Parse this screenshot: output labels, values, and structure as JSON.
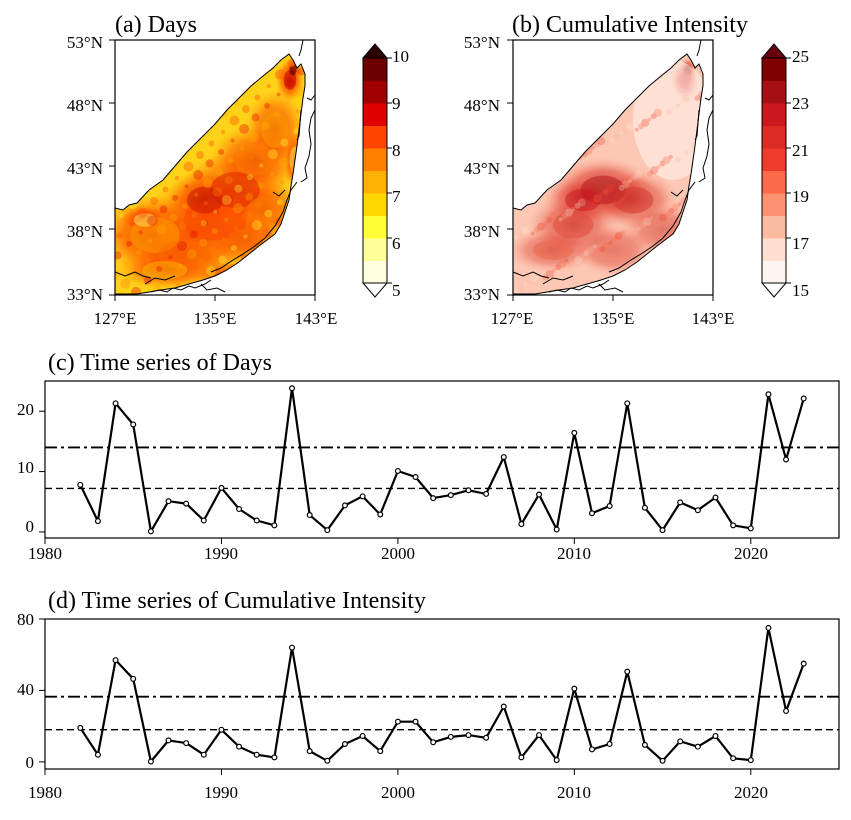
{
  "panel_a": {
    "title": "(a) Days",
    "lat_ticks": [
      "53°N",
      "48°N",
      "43°N",
      "38°N",
      "33°N"
    ],
    "lon_ticks": [
      "127°E",
      "135°E",
      "143°E"
    ],
    "colorbar": {
      "ticks": [
        "10",
        "9",
        "8",
        "7",
        "6",
        "5"
      ],
      "min": 5,
      "max": 10,
      "levels": 10,
      "colors": [
        "#ffffe0",
        "#ffff99",
        "#ffff33",
        "#ffd700",
        "#ffb000",
        "#ff8000",
        "#ff4500",
        "#e00000",
        "#a00000",
        "#6a0000"
      ],
      "over_color": "#2b0000",
      "under_color": "#ffffff"
    }
  },
  "panel_b": {
    "title": "(b) Cumulative Intensity",
    "lat_ticks": [
      "53°N",
      "48°N",
      "43°N",
      "38°N",
      "33°N"
    ],
    "lon_ticks": [
      "127°E",
      "135°E",
      "143°E"
    ],
    "colorbar": {
      "ticks": [
        "25",
        "23",
        "21",
        "19",
        "17",
        "15"
      ],
      "min": 15,
      "max": 25,
      "levels": 10,
      "colors": [
        "#fff5f0",
        "#fee0d2",
        "#fcbba1",
        "#fc9272",
        "#fb6a4a",
        "#ef3b2c",
        "#dc2a25",
        "#cb181d",
        "#a50f15",
        "#7f0000"
      ],
      "over_color": "#67000d",
      "under_color": "#ffffff"
    }
  },
  "chart_data": [
    {
      "type": "line",
      "title": "(c) Time series of Days",
      "x": [
        1982,
        1983,
        1984,
        1985,
        1986,
        1987,
        1988,
        1989,
        1990,
        1991,
        1992,
        1993,
        1994,
        1995,
        1996,
        1997,
        1998,
        1999,
        2000,
        2001,
        2002,
        2003,
        2004,
        2005,
        2006,
        2007,
        2008,
        2009,
        2010,
        2011,
        2012,
        2013,
        2014,
        2015,
        2016,
        2017,
        2018,
        2019,
        2020,
        2021,
        2022,
        2023
      ],
      "series": [
        {
          "values": [
            7.8,
            1.8,
            21.3,
            17.8,
            0.1,
            5.1,
            4.7,
            1.9,
            7.3,
            3.8,
            1.9,
            1.1,
            23.8,
            2.8,
            0.3,
            4.4,
            5.9,
            2.9,
            10.1,
            9.1,
            5.6,
            6.1,
            6.9,
            6.3,
            12.4,
            1.3,
            6.2,
            0.4,
            16.4,
            3.1,
            4.3,
            21.3,
            4.0,
            0.3,
            4.9,
            3.6,
            5.7,
            1.1,
            0.6,
            22.8,
            12.0,
            22.1
          ]
        }
      ],
      "reference_lines": [
        {
          "style": "dash-dot",
          "y": 14.0
        },
        {
          "style": "dashed",
          "y": 7.2
        }
      ],
      "xlim": [
        1980,
        2025
      ],
      "ylim": [
        -1,
        25
      ],
      "xticks": [
        "1980",
        "1990",
        "2000",
        "2010",
        "2020"
      ],
      "yticks": [
        "0",
        "10",
        "20"
      ]
    },
    {
      "type": "line",
      "title": "(d) Time series of Cumulative Intensity",
      "x": [
        1982,
        1983,
        1984,
        1985,
        1986,
        1987,
        1988,
        1989,
        1990,
        1991,
        1992,
        1993,
        1994,
        1995,
        1996,
        1997,
        1998,
        1999,
        2000,
        2001,
        2002,
        2003,
        2004,
        2005,
        2006,
        2007,
        2008,
        2009,
        2010,
        2011,
        2012,
        2013,
        2014,
        2015,
        2016,
        2017,
        2018,
        2019,
        2020,
        2021,
        2022,
        2023
      ],
      "series": [
        {
          "values": [
            19.0,
            4.0,
            57.0,
            46.5,
            0.2,
            12.0,
            10.5,
            4.0,
            18.0,
            8.5,
            4.0,
            2.5,
            64.0,
            6.0,
            0.6,
            10.0,
            14.5,
            6.0,
            22.5,
            22.5,
            11.0,
            14.0,
            15.0,
            13.5,
            31.0,
            2.5,
            15.0,
            1.0,
            41.0,
            7.0,
            10.0,
            50.5,
            9.5,
            0.6,
            11.5,
            8.5,
            14.5,
            2.0,
            1.0,
            75.0,
            28.5,
            55.0
          ]
        }
      ],
      "reference_lines": [
        {
          "style": "dash-dot",
          "y": 36.5
        },
        {
          "style": "dashed",
          "y": 18.0
        }
      ],
      "xlim": [
        1980,
        2025
      ],
      "ylim": [
        -4,
        80
      ],
      "xticks": [
        "1980",
        "1990",
        "2000",
        "2010",
        "2020"
      ],
      "yticks": [
        "0",
        "40",
        "80"
      ]
    }
  ]
}
